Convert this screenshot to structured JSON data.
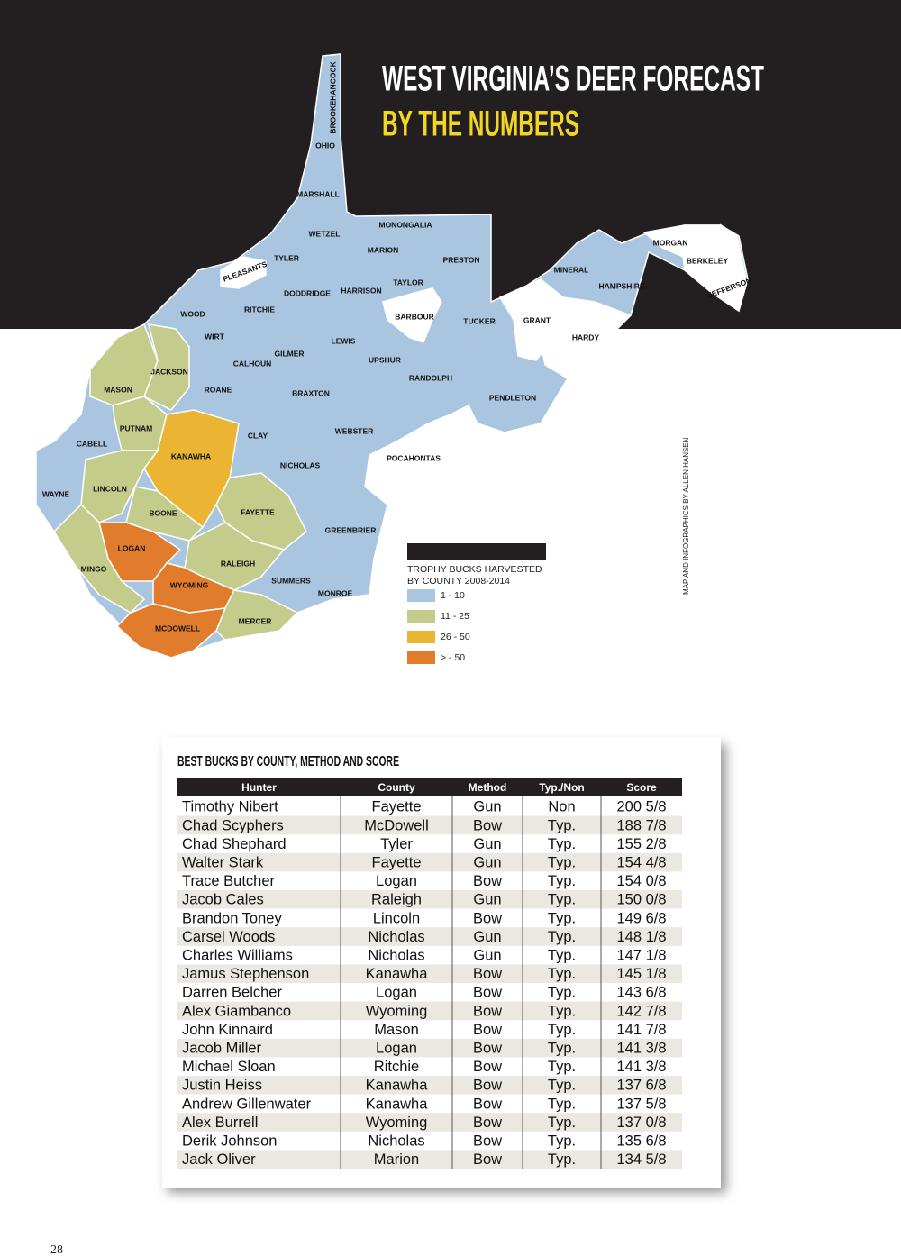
{
  "header": {
    "title_line1": "WEST VIRGINIA’S DEER FORECAST",
    "title_line2": "BY THE NUMBERS"
  },
  "map": {
    "legend": {
      "title_lines": [
        "TROPHY BUCKS HARVESTED",
        "BY COUNTY 2008-2014"
      ],
      "items": [
        {
          "label": "1 - 10",
          "color": "#a9c5df"
        },
        {
          "label": "11 - 25",
          "color": "#c4cc8b"
        },
        {
          "label": "26 - 50",
          "color": "#ebb432"
        },
        {
          "label": "> - 50",
          "color": "#e07c2b"
        }
      ]
    },
    "counties": [
      {
        "name": "HANCOCK",
        "bin": 0
      },
      {
        "name": "BROOKE",
        "bin": 0
      },
      {
        "name": "OHIO",
        "bin": 0
      },
      {
        "name": "MARSHALL",
        "bin": 0
      },
      {
        "name": "WETZEL",
        "bin": 0
      },
      {
        "name": "MONONGALIA",
        "bin": 0
      },
      {
        "name": "MARION",
        "bin": 0
      },
      {
        "name": "PRESTON",
        "bin": 0
      },
      {
        "name": "TYLER",
        "bin": 0
      },
      {
        "name": "PLEASANTS",
        "bin": null
      },
      {
        "name": "DODDRIDGE",
        "bin": 0
      },
      {
        "name": "HARRISON",
        "bin": 0
      },
      {
        "name": "TAYLOR",
        "bin": 0
      },
      {
        "name": "BARBOUR",
        "bin": null
      },
      {
        "name": "TUCKER",
        "bin": 0
      },
      {
        "name": "GRANT",
        "bin": null
      },
      {
        "name": "MINERAL",
        "bin": 0
      },
      {
        "name": "HAMPSHIRE",
        "bin": 0
      },
      {
        "name": "MORGAN",
        "bin": null
      },
      {
        "name": "BERKELEY",
        "bin": null
      },
      {
        "name": "JEFFERSON",
        "bin": null
      },
      {
        "name": "HARDY",
        "bin": null
      },
      {
        "name": "WOOD",
        "bin": 0
      },
      {
        "name": "RITCHIE",
        "bin": 0
      },
      {
        "name": "WIRT",
        "bin": 0
      },
      {
        "name": "CALHOUN",
        "bin": 0
      },
      {
        "name": "GILMER",
        "bin": 0
      },
      {
        "name": "LEWIS",
        "bin": 0
      },
      {
        "name": "UPSHUR",
        "bin": 0
      },
      {
        "name": "RANDOLPH",
        "bin": 0
      },
      {
        "name": "PENDLETON",
        "bin": 0
      },
      {
        "name": "JACKSON",
        "bin": 1
      },
      {
        "name": "MASON",
        "bin": 1
      },
      {
        "name": "ROANE",
        "bin": 0
      },
      {
        "name": "BRAXTON",
        "bin": 0
      },
      {
        "name": "PUTNAM",
        "bin": 1
      },
      {
        "name": "CABELL",
        "bin": 0
      },
      {
        "name": "KANAWHA",
        "bin": 2
      },
      {
        "name": "CLAY",
        "bin": 0
      },
      {
        "name": "WEBSTER",
        "bin": 0
      },
      {
        "name": "POCAHONTAS",
        "bin": null
      },
      {
        "name": "NICHOLAS",
        "bin": 0
      },
      {
        "name": "LINCOLN",
        "bin": 1
      },
      {
        "name": "WAYNE",
        "bin": 0
      },
      {
        "name": "BOONE",
        "bin": 1
      },
      {
        "name": "FAYETTE",
        "bin": 1
      },
      {
        "name": "GREENBRIER",
        "bin": 0
      },
      {
        "name": "LOGAN",
        "bin": 3
      },
      {
        "name": "RALEIGH",
        "bin": 1
      },
      {
        "name": "MINGO",
        "bin": 1
      },
      {
        "name": "SUMMERS",
        "bin": 0
      },
      {
        "name": "WYOMING",
        "bin": 3
      },
      {
        "name": "MONROE",
        "bin": 0
      },
      {
        "name": "MERCER",
        "bin": 1
      },
      {
        "name": "MCDOWELL",
        "bin": 3
      }
    ],
    "credit": "MAP AND INFOGRAPHICS BY ALLEN HANSEN"
  },
  "table": {
    "title": "BEST BUCKS BY COUNTY, METHOD AND SCORE",
    "columns": [
      "Hunter",
      "County",
      "Method",
      "Typ./Non",
      "Score"
    ],
    "rows": [
      [
        "Timothy Nibert",
        "Fayette",
        "Gun",
        "Non",
        "200 5/8"
      ],
      [
        "Chad Scyphers",
        "McDowell",
        "Bow",
        "Typ.",
        "188 7/8"
      ],
      [
        "Chad Shephard",
        "Tyler",
        "Gun",
        "Typ.",
        "155 2/8"
      ],
      [
        "Walter Stark",
        "Fayette",
        "Gun",
        "Typ.",
        "154 4/8"
      ],
      [
        "Trace Butcher",
        "Logan",
        "Bow",
        "Typ.",
        "154 0/8"
      ],
      [
        "Jacob Cales",
        "Raleigh",
        "Gun",
        "Typ.",
        "150 0/8"
      ],
      [
        "Brandon Toney",
        "Lincoln",
        "Bow",
        "Typ.",
        "149 6/8"
      ],
      [
        "Carsel Woods",
        "Nicholas",
        "Gun",
        "Typ.",
        "148 1/8"
      ],
      [
        "Charles Williams",
        "Nicholas",
        "Gun",
        "Typ.",
        "147 1/8"
      ],
      [
        "Jamus Stephenson",
        "Kanawha",
        "Bow",
        "Typ.",
        "145 1/8"
      ],
      [
        "Darren Belcher",
        "Logan",
        "Bow",
        "Typ.",
        "143 6/8"
      ],
      [
        "Alex Giambanco",
        "Wyoming",
        "Bow",
        "Typ.",
        "142 7/8"
      ],
      [
        "John Kinnaird",
        "Mason",
        "Bow",
        "Typ.",
        "141 7/8"
      ],
      [
        "Jacob Miller",
        "Logan",
        "Bow",
        "Typ.",
        "141 3/8"
      ],
      [
        "Michael Sloan",
        "Ritchie",
        "Bow",
        "Typ.",
        "141 3/8"
      ],
      [
        "Justin Heiss",
        "Kanawha",
        "Bow",
        "Typ.",
        "137 6/8"
      ],
      [
        "Andrew Gillenwater",
        "Kanawha",
        "Bow",
        "Typ.",
        "137 5/8"
      ],
      [
        "Alex Burrell",
        "Wyoming",
        "Bow",
        "Typ.",
        "137 0/8"
      ],
      [
        "Derik Johnson",
        "Nicholas",
        "Bow",
        "Typ.",
        "135 6/8"
      ],
      [
        "Jack Oliver",
        "Marion",
        "Bow",
        "Typ.",
        "134 5/8"
      ]
    ]
  },
  "page_number": "28"
}
